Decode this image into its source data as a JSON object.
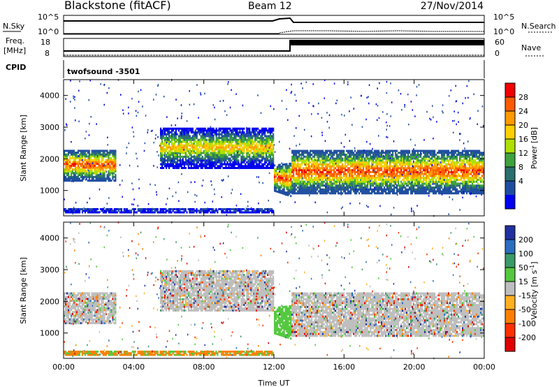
{
  "header": {
    "radar": "Blackstone (fitACF)",
    "beam": "Beam 12",
    "date": "27/Nov/2014"
  },
  "top_panel": {
    "nsky_label": "N.Sky",
    "nsearch_label": "N.Search",
    "nsky_ticks": [
      "10^5",
      "10^0"
    ],
    "nsearch_ticks": [
      "10^5",
      "10^0"
    ],
    "freq_label_line1": "Freq.",
    "freq_label_line2": "[MHz]",
    "nave_label": "Nave",
    "freq_ticks": [
      "18",
      "8"
    ],
    "nave_ticks": [
      "60",
      "0"
    ],
    "cpid_label": "CPID",
    "cpid_text": "twofsound  -3501"
  },
  "power_colorbar": {
    "label": "Power [dB]",
    "ticks": [
      "28",
      "24",
      "20",
      "16",
      "12",
      "8",
      "4"
    ],
    "colors": [
      "#f00000",
      "#ff5a00",
      "#ff9a00",
      "#ffd000",
      "#aee000",
      "#3da33d",
      "#2a6e6e",
      "#1f4ea0",
      "#0000f0"
    ]
  },
  "velocity_colorbar": {
    "label": "Velocity [m s",
    "label_sup": "-1",
    "label_end": "]",
    "ticks": [
      "200",
      "100",
      "50",
      "15",
      "-15",
      "-50",
      "-100",
      "-200"
    ],
    "colors": [
      "#2030a0",
      "#2a6ec0",
      "#3a9a6a",
      "#55c840",
      "#bebebe",
      "#ffb020",
      "#ff8000",
      "#ff3000",
      "#e00000"
    ]
  },
  "chart_data": [
    {
      "type": "heatmap",
      "name": "power",
      "ylabel": "Slant Range [km]",
      "yticks": [
        "4000",
        "3000",
        "2000",
        "1000"
      ],
      "ylim": [
        200,
        4500
      ],
      "xlim": [
        "00:00",
        "24:00"
      ],
      "echo_bands": [
        {
          "t_start_h": 0.0,
          "t_end_h": 12.0,
          "range_km": [
            300,
            450
          ],
          "level": "low"
        },
        {
          "t_start_h": 0.0,
          "t_end_h": 3.0,
          "range_km": [
            1300,
            2300
          ],
          "level": "high"
        },
        {
          "t_start_h": 5.5,
          "t_end_h": 12.0,
          "range_km": [
            1700,
            3000
          ],
          "level": "mid"
        },
        {
          "t_start_h": 12.0,
          "t_end_h": 13.0,
          "range_km": [
            800,
            1900
          ],
          "level": "high"
        },
        {
          "t_start_h": 13.0,
          "t_end_h": 24.0,
          "range_km": [
            900,
            2300
          ],
          "level": "high"
        }
      ]
    },
    {
      "type": "heatmap",
      "name": "velocity",
      "ylabel": "Slant Range [km]",
      "yticks": [
        "4000",
        "3000",
        "2000",
        "1000"
      ],
      "ylim": [
        200,
        4500
      ],
      "xlabel": "Time UT",
      "xticks": [
        "00:00",
        "04:00",
        "08:00",
        "12:00",
        "16:00",
        "20:00",
        "00:00"
      ],
      "xlim": [
        "00:00",
        "24:00"
      ]
    }
  ]
}
